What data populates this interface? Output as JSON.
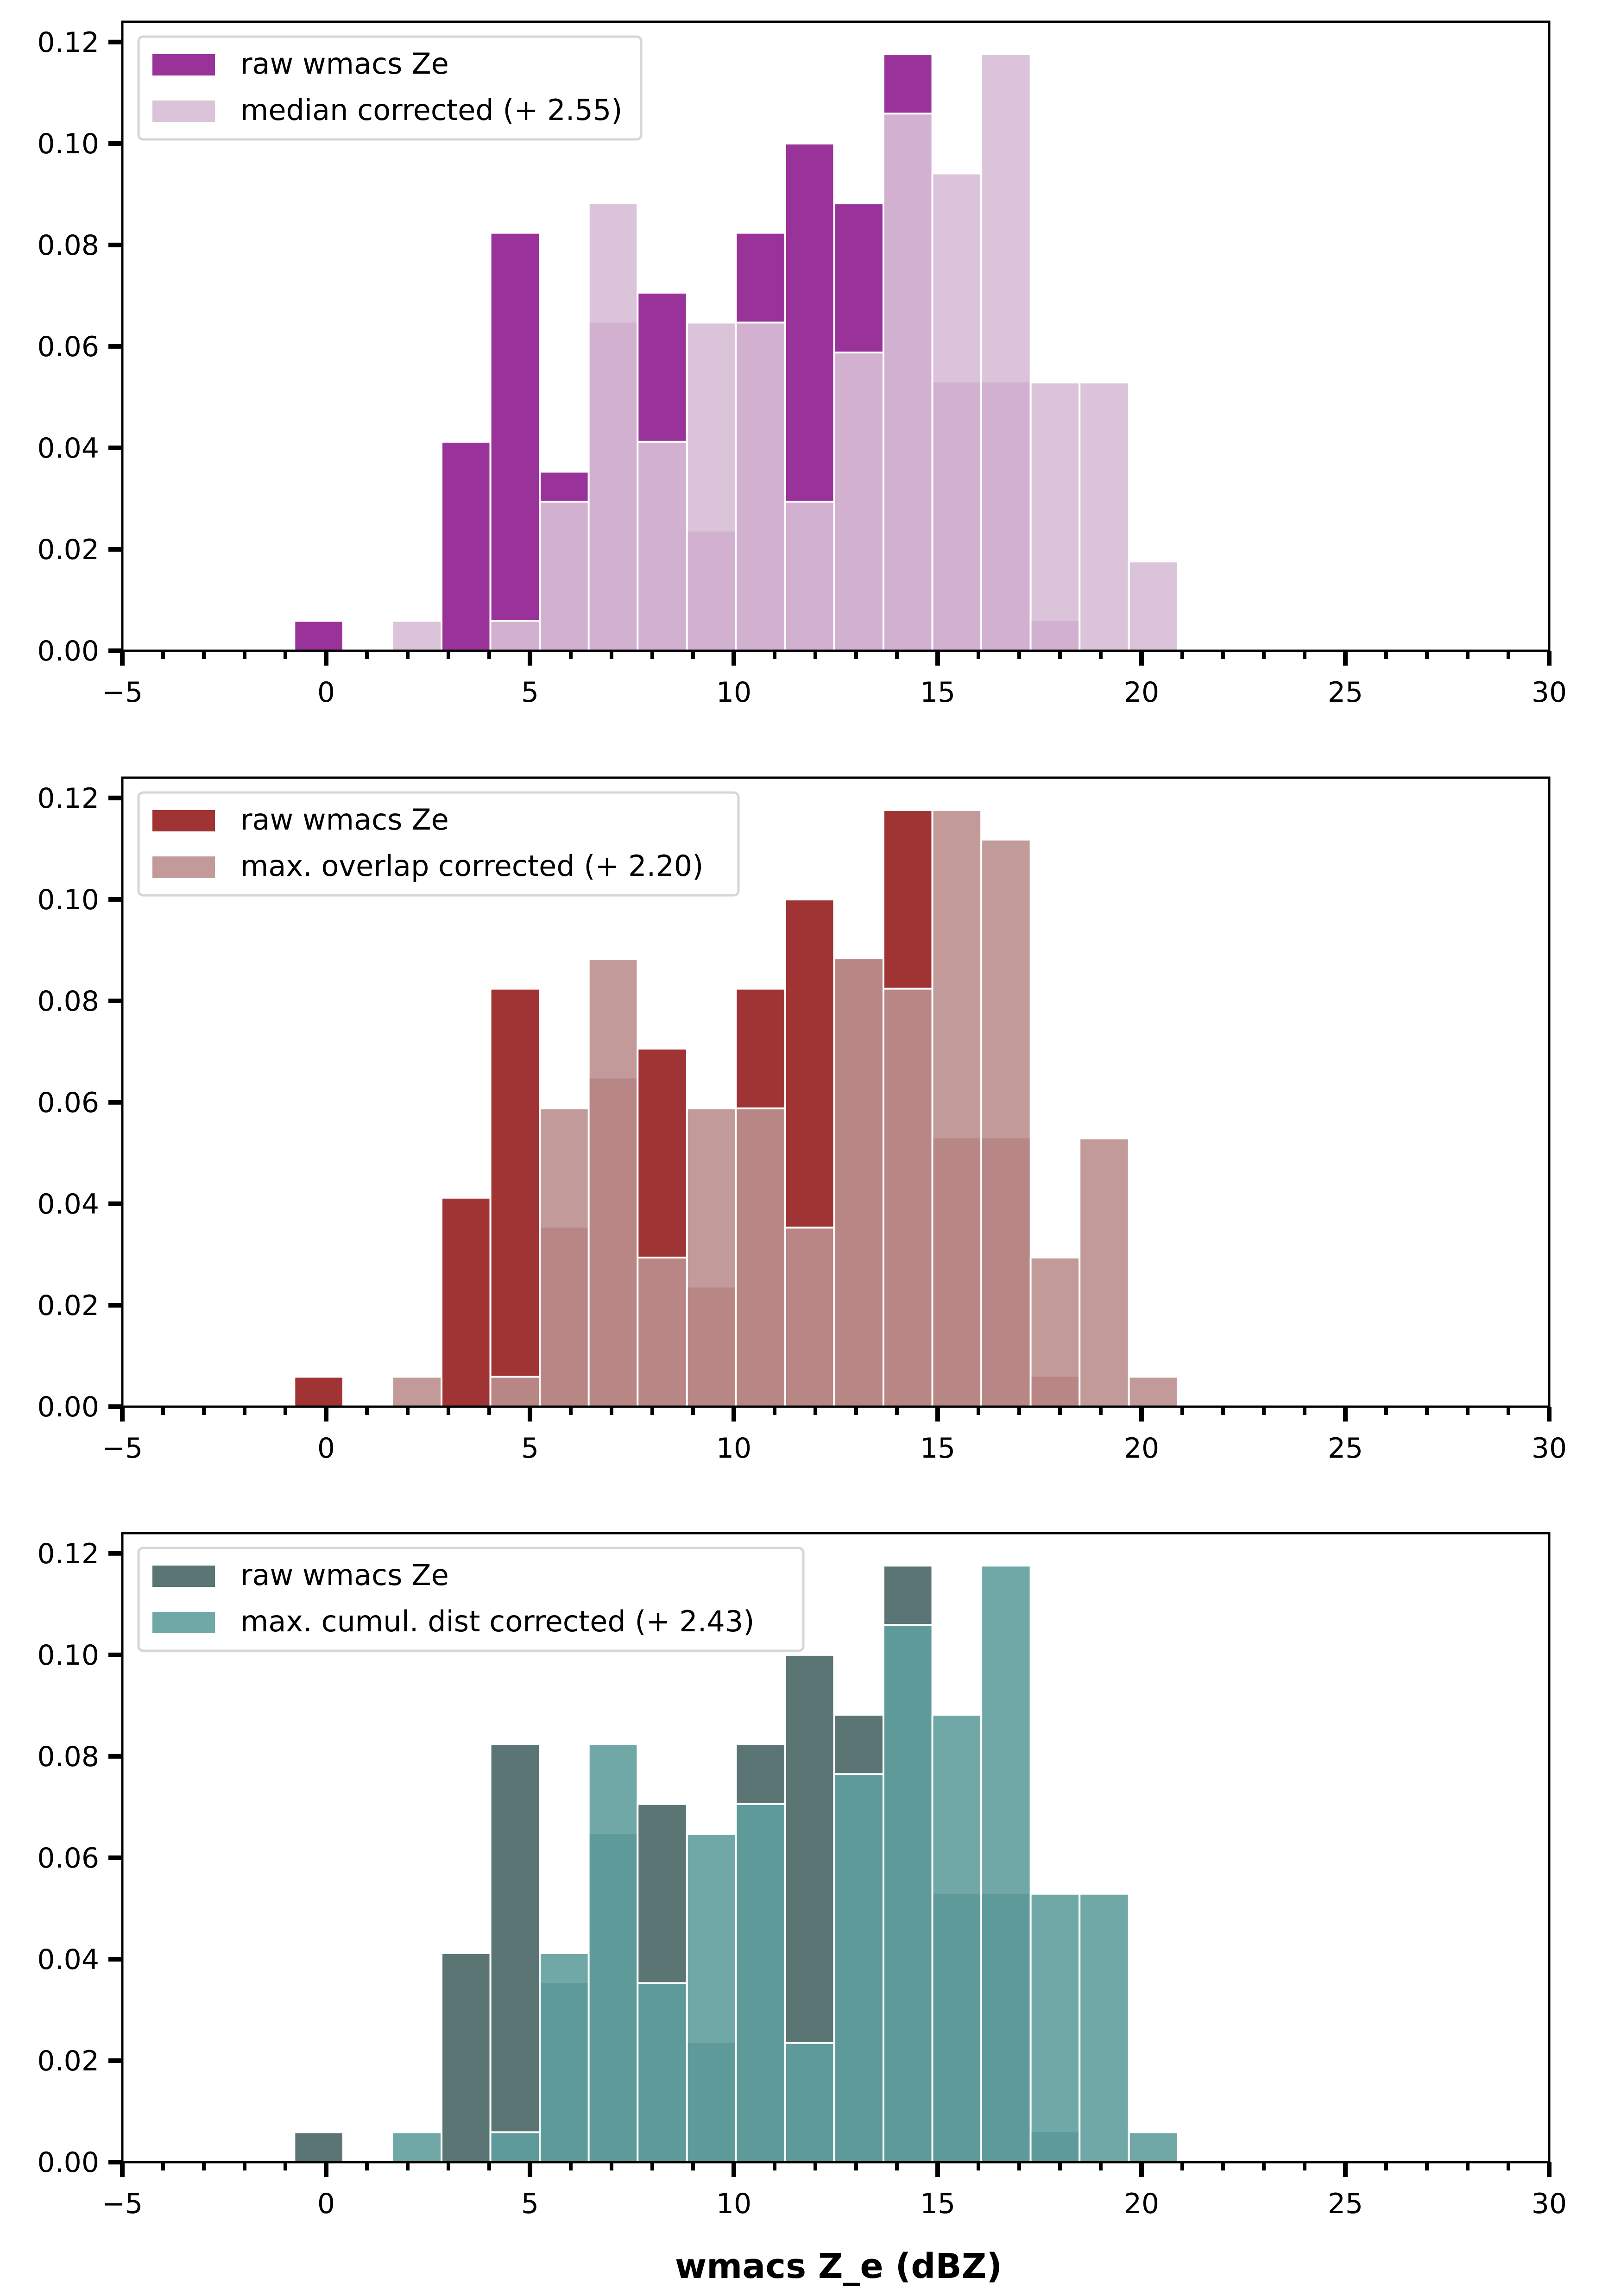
{
  "chart_data": [
    {
      "type": "bar",
      "subtype": "overlaid histogram",
      "bin_edges": [
        -0.78,
        0.42,
        1.62,
        2.83,
        4.03,
        5.24,
        6.44,
        7.64,
        8.85,
        10.05,
        11.26,
        12.46,
        13.67,
        14.87,
        16.07,
        17.28,
        18.48,
        19.69,
        20.89
      ],
      "xlim": [
        -5,
        30
      ],
      "ylim": [
        0,
        0.124
      ],
      "xticks": [
        -5,
        0,
        5,
        10,
        15,
        20,
        25,
        30
      ],
      "xtick_labels": [
        "−5",
        "0",
        "5",
        "10",
        "15",
        "20",
        "25",
        "30"
      ],
      "yticks": [
        0.0,
        0.02,
        0.04,
        0.06,
        0.08,
        0.1,
        0.12
      ],
      "ytick_labels": [
        "0.00",
        "0.02",
        "0.04",
        "0.06",
        "0.08",
        "0.10",
        "0.12"
      ],
      "xlabel": "",
      "ylabel": "",
      "grid": false,
      "legend_position": "top-left",
      "series": [
        {
          "name": "raw wmacs Ze",
          "color": "#993399",
          "alpha": 1.0,
          "values": [
            0.0059,
            0,
            0,
            0.0412,
            0.0824,
            0.0353,
            0.0647,
            0.0706,
            0.0235,
            0.0824,
            0.1,
            0.0882,
            0.1176,
            0.0529,
            0.0529,
            0.0059,
            0,
            0
          ]
        },
        {
          "name": "median corrected (+ 2.55)",
          "color": "#dbc3d9",
          "overlap_color": "#d2b0d0",
          "alpha": 0.5,
          "values": [
            0,
            0,
            0.0059,
            0,
            0.0059,
            0.0294,
            0.0882,
            0.0412,
            0.0647,
            0.0647,
            0.0294,
            0.0588,
            0.1059,
            0.0941,
            0.1176,
            0.0529,
            0.0529,
            0.0176
          ]
        }
      ]
    },
    {
      "type": "bar",
      "subtype": "overlaid histogram",
      "bin_edges": [
        -0.78,
        0.42,
        1.62,
        2.83,
        4.03,
        5.24,
        6.44,
        7.64,
        8.85,
        10.05,
        11.26,
        12.46,
        13.67,
        14.87,
        16.07,
        17.28,
        18.48,
        19.69,
        20.89
      ],
      "xlim": [
        -5,
        30
      ],
      "ylim": [
        0,
        0.124
      ],
      "xticks": [
        -5,
        0,
        5,
        10,
        15,
        20,
        25,
        30
      ],
      "xtick_labels": [
        "−5",
        "0",
        "5",
        "10",
        "15",
        "20",
        "25",
        "30"
      ],
      "yticks": [
        0.0,
        0.02,
        0.04,
        0.06,
        0.08,
        0.1,
        0.12
      ],
      "ytick_labels": [
        "0.00",
        "0.02",
        "0.04",
        "0.06",
        "0.08",
        "0.10",
        "0.12"
      ],
      "xlabel": "",
      "ylabel": "",
      "grid": false,
      "legend_position": "top-left",
      "series": [
        {
          "name": "raw wmacs Ze",
          "color": "#a03333",
          "alpha": 1.0,
          "values": [
            0.0059,
            0,
            0,
            0.0412,
            0.0824,
            0.0353,
            0.0647,
            0.0706,
            0.0235,
            0.0824,
            0.1,
            0.0882,
            0.1176,
            0.0529,
            0.0529,
            0.0059,
            0,
            0
          ]
        },
        {
          "name": "max. overlap corrected (+ 2.20)",
          "color": "#c29a9a",
          "overlap_color": "#b88684",
          "alpha": 0.5,
          "values": [
            0,
            0,
            0.0059,
            0,
            0.0059,
            0.0588,
            0.0882,
            0.0294,
            0.0588,
            0.0588,
            0.0353,
            0.0882,
            0.0824,
            0.1176,
            0.1118,
            0.0294,
            0.0529,
            0.0059
          ]
        }
      ]
    },
    {
      "type": "bar",
      "subtype": "overlaid histogram",
      "bin_edges": [
        -0.78,
        0.42,
        1.62,
        2.83,
        4.03,
        5.24,
        6.44,
        7.64,
        8.85,
        10.05,
        11.26,
        12.46,
        13.67,
        14.87,
        16.07,
        17.28,
        18.48,
        19.69,
        20.89
      ],
      "xlim": [
        -5,
        30
      ],
      "ylim": [
        0,
        0.124
      ],
      "xticks": [
        -5,
        0,
        5,
        10,
        15,
        20,
        25,
        30
      ],
      "xtick_labels": [
        "−5",
        "0",
        "5",
        "10",
        "15",
        "20",
        "25",
        "30"
      ],
      "yticks": [
        0.0,
        0.02,
        0.04,
        0.06,
        0.08,
        0.1,
        0.12
      ],
      "ytick_labels": [
        "0.00",
        "0.02",
        "0.04",
        "0.06",
        "0.08",
        "0.10",
        "0.12"
      ],
      "xlabel": "wmacs Z_e (dBZ)",
      "ylabel": "",
      "grid": false,
      "legend_position": "top-left",
      "series": [
        {
          "name": "raw wmacs Ze",
          "color": "#5a7574",
          "alpha": 1.0,
          "values": [
            0.0059,
            0,
            0,
            0.0412,
            0.0824,
            0.0353,
            0.0647,
            0.0706,
            0.0235,
            0.0824,
            0.1,
            0.0882,
            0.1176,
            0.0529,
            0.0529,
            0.0059,
            0,
            0
          ]
        },
        {
          "name": "max. cumul. dist corrected (+ 2.43)",
          "color": "#70a7a7",
          "overlap_color": "#5f9a9a",
          "alpha": 0.5,
          "values": [
            0,
            0,
            0.0059,
            0,
            0.0059,
            0.0412,
            0.0824,
            0.0353,
            0.0647,
            0.0706,
            0.0235,
            0.0765,
            0.1059,
            0.0882,
            0.1176,
            0.0529,
            0.0529,
            0.0059
          ]
        }
      ]
    }
  ],
  "figure": {
    "xlabel": "wmacs Z_e (dBZ)"
  }
}
